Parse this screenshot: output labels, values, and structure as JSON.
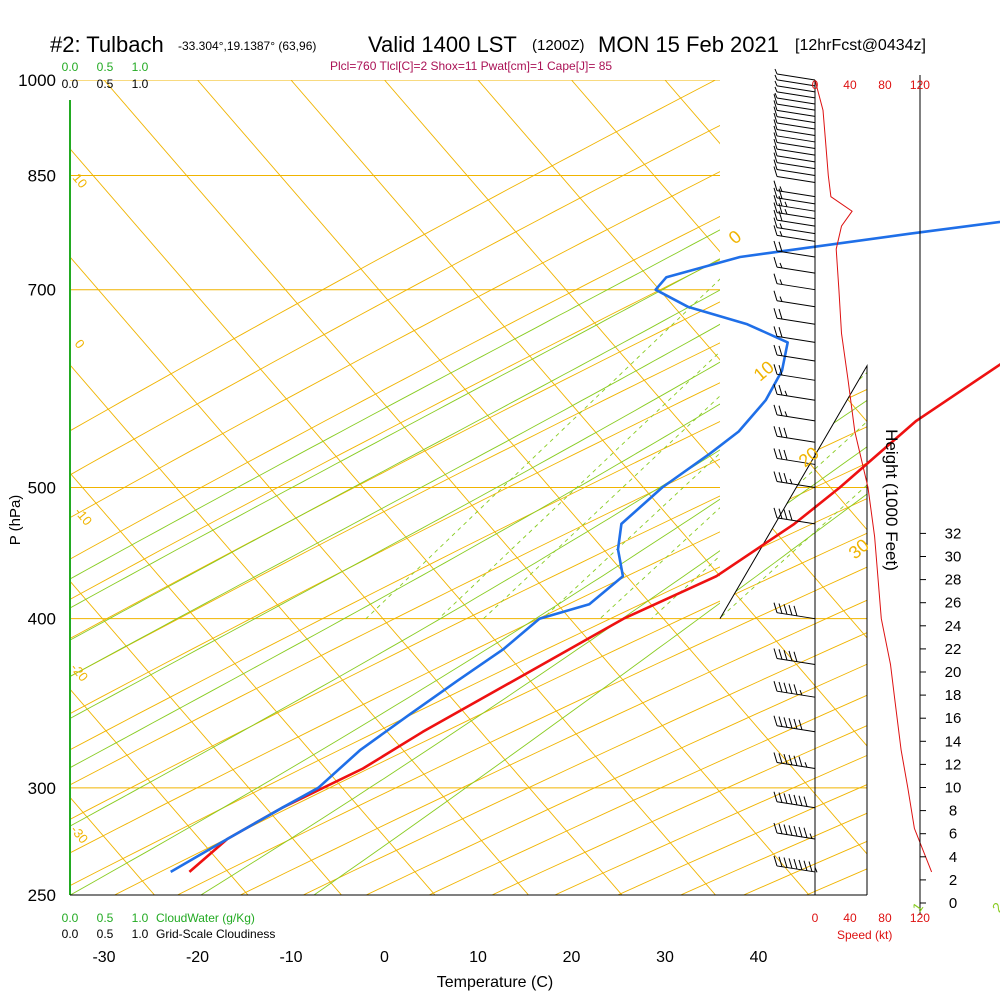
{
  "header": {
    "station": "#2: Tulbach",
    "coords": "-33.304°,19.1387° (63,96)",
    "valid": "Valid 1400 LST",
    "zulu": "(1200Z)",
    "date": "MON 15 Feb 2021",
    "forecast": "[12hrFcst@0434z]",
    "params": "Plcl=760 Tlcl[C]=2 Shox=11 Pwat[cm]=1 Cape[J]= 85"
  },
  "colors": {
    "isotherm": "#f0b400",
    "dryAdiabat": "#f0b400",
    "moistAdiabat": "#88cc22",
    "mixingRatio": "#88cc22",
    "temperature": "#ee1111",
    "dewpoint": "#1f6fe8",
    "parcel": "#661155",
    "wind": "#000000",
    "speed": "#dd1111",
    "cloud": "#22aa22",
    "params": "#aa1155"
  },
  "chart_data": {
    "type": "line",
    "title": "Skew-T",
    "xlabel": "Temperature (C)",
    "ylabel": "P (hPa)",
    "y2label": "Height (1000 Feet)",
    "x_ticks": [
      "-30",
      "-20",
      "-10",
      "0",
      "10",
      "20",
      "30",
      "40"
    ],
    "pressure_ticks": [
      "250",
      "300",
      "400",
      "500",
      "700",
      "850",
      "1000"
    ],
    "height_ticks": [
      "0",
      "2",
      "4",
      "6",
      "8",
      "10",
      "12",
      "14",
      "16",
      "18",
      "20",
      "22",
      "24",
      "26",
      "28",
      "30",
      "32"
    ],
    "speed_ticks": [
      "0",
      "40",
      "80",
      "120"
    ],
    "speed_label": "Speed (kt)",
    "isotherm_labels": [
      "0",
      "10",
      "20",
      "30"
    ],
    "dry_adiabat_labels": [
      "10",
      "0",
      "-10",
      "-20",
      "-30"
    ],
    "mixing_ratio_labels": [
      "1",
      "2",
      "3",
      "5",
      "8",
      "12",
      "20"
    ],
    "cloud_scale_top": [
      "0.0",
      "0.5",
      "1.0"
    ],
    "cloud_scale_bottom": [
      "0.0",
      "0.5",
      "1.0"
    ],
    "cloud_water_label": "CloudWater (g/Kg)",
    "cloudiness_label": "Grid-Scale Cloudiness",
    "series": [
      {
        "name": "Temperature",
        "points": [
          [
            26.5,
            1000
          ],
          [
            24,
            960
          ],
          [
            20,
            900
          ],
          [
            16.5,
            850
          ],
          [
            13.5,
            800
          ],
          [
            13,
            790
          ],
          [
            14.5,
            770
          ],
          [
            17,
            750
          ],
          [
            17.5,
            730
          ],
          [
            17.5,
            700
          ],
          [
            18,
            660
          ],
          [
            17,
            620
          ],
          [
            13,
            560
          ],
          [
            11,
            500
          ],
          [
            9.5,
            470
          ],
          [
            6,
            430
          ],
          [
            0,
            400
          ],
          [
            -6,
            360
          ],
          [
            -11,
            330
          ],
          [
            -14,
            310
          ],
          [
            -19,
            290
          ],
          [
            -22,
            275
          ],
          [
            -23,
            260
          ]
        ]
      },
      {
        "name": "Dewpoint",
        "points": [
          [
            7,
            1000
          ],
          [
            6,
            995
          ],
          [
            6,
            970
          ],
          [
            8,
            900
          ],
          [
            10,
            850
          ],
          [
            11,
            810
          ],
          [
            10,
            800
          ],
          [
            6,
            790
          ],
          [
            -5,
            770
          ],
          [
            -21,
            740
          ],
          [
            -27,
            715
          ],
          [
            -27,
            700
          ],
          [
            -22,
            680
          ],
          [
            -14,
            660
          ],
          [
            -8,
            640
          ],
          [
            -6,
            610
          ],
          [
            -5,
            580
          ],
          [
            -5,
            550
          ],
          [
            -6,
            530
          ],
          [
            -8,
            500
          ],
          [
            -9,
            470
          ],
          [
            -7,
            450
          ],
          [
            -4,
            430
          ],
          [
            -5,
            410
          ],
          [
            -9,
            400
          ],
          [
            -10,
            380
          ],
          [
            -12,
            360
          ],
          [
            -14,
            340
          ],
          [
            -16,
            320
          ],
          [
            -17,
            300
          ],
          [
            -19,
            290
          ],
          [
            -22,
            275
          ],
          [
            -25,
            260
          ]
        ]
      },
      {
        "name": "Parcel",
        "points": [
          [
            14.5,
            790
          ],
          [
            17.2,
            820
          ],
          [
            20.5,
            870
          ],
          [
            23.8,
            920
          ],
          [
            27,
            975
          ],
          [
            27.5,
            1000
          ]
        ]
      }
    ],
    "surface_temperature": 27.5,
    "surface_dewpoint": 10.5,
    "wind_speed_kt": [
      [
        1000,
        0
      ],
      [
        950,
        6
      ],
      [
        900,
        8
      ],
      [
        850,
        10
      ],
      [
        820,
        12
      ],
      [
        800,
        28
      ],
      [
        780,
        20
      ],
      [
        750,
        16
      ],
      [
        700,
        18
      ],
      [
        650,
        20
      ],
      [
        600,
        25
      ],
      [
        550,
        30
      ],
      [
        500,
        40
      ],
      [
        460,
        45
      ],
      [
        400,
        50
      ],
      [
        370,
        57
      ],
      [
        350,
        60
      ],
      [
        320,
        65
      ],
      [
        300,
        70
      ],
      [
        280,
        75
      ],
      [
        260,
        88
      ]
    ],
    "wind_barbs": [
      {
        "p": 1000,
        "kt": 5
      },
      {
        "p": 990,
        "kt": 5
      },
      {
        "p": 980,
        "kt": 5
      },
      {
        "p": 970,
        "kt": 5
      },
      {
        "p": 960,
        "kt": 5
      },
      {
        "p": 950,
        "kt": 10
      },
      {
        "p": 940,
        "kt": 10
      },
      {
        "p": 930,
        "kt": 10
      },
      {
        "p": 920,
        "kt": 10
      },
      {
        "p": 910,
        "kt": 10
      },
      {
        "p": 900,
        "kt": 10
      },
      {
        "p": 890,
        "kt": 10
      },
      {
        "p": 880,
        "kt": 10
      },
      {
        "p": 870,
        "kt": 10
      },
      {
        "p": 860,
        "kt": 10
      },
      {
        "p": 850,
        "kt": 10
      },
      {
        "p": 840,
        "kt": 10
      },
      {
        "p": 820,
        "kt": 15
      },
      {
        "p": 810,
        "kt": 20
      },
      {
        "p": 800,
        "kt": 25
      },
      {
        "p": 790,
        "kt": 25
      },
      {
        "p": 780,
        "kt": 20
      },
      {
        "p": 770,
        "kt": 15
      },
      {
        "p": 760,
        "kt": 15
      },
      {
        "p": 740,
        "kt": 20
      },
      {
        "p": 720,
        "kt": 15
      },
      {
        "p": 700,
        "kt": 15
      },
      {
        "p": 680,
        "kt": 15
      },
      {
        "p": 660,
        "kt": 20
      },
      {
        "p": 640,
        "kt": 20
      },
      {
        "p": 620,
        "kt": 20
      },
      {
        "p": 600,
        "kt": 20
      },
      {
        "p": 580,
        "kt": 25
      },
      {
        "p": 560,
        "kt": 25
      },
      {
        "p": 540,
        "kt": 30
      },
      {
        "p": 520,
        "kt": 30
      },
      {
        "p": 500,
        "kt": 35
      },
      {
        "p": 470,
        "kt": 40
      },
      {
        "p": 400,
        "kt": 50
      },
      {
        "p": 370,
        "kt": 50
      },
      {
        "p": 350,
        "kt": 55
      },
      {
        "p": 330,
        "kt": 60
      },
      {
        "p": 310,
        "kt": 65
      },
      {
        "p": 290,
        "kt": 70
      },
      {
        "p": 275,
        "kt": 75
      },
      {
        "p": 260,
        "kt": 85
      }
    ]
  }
}
